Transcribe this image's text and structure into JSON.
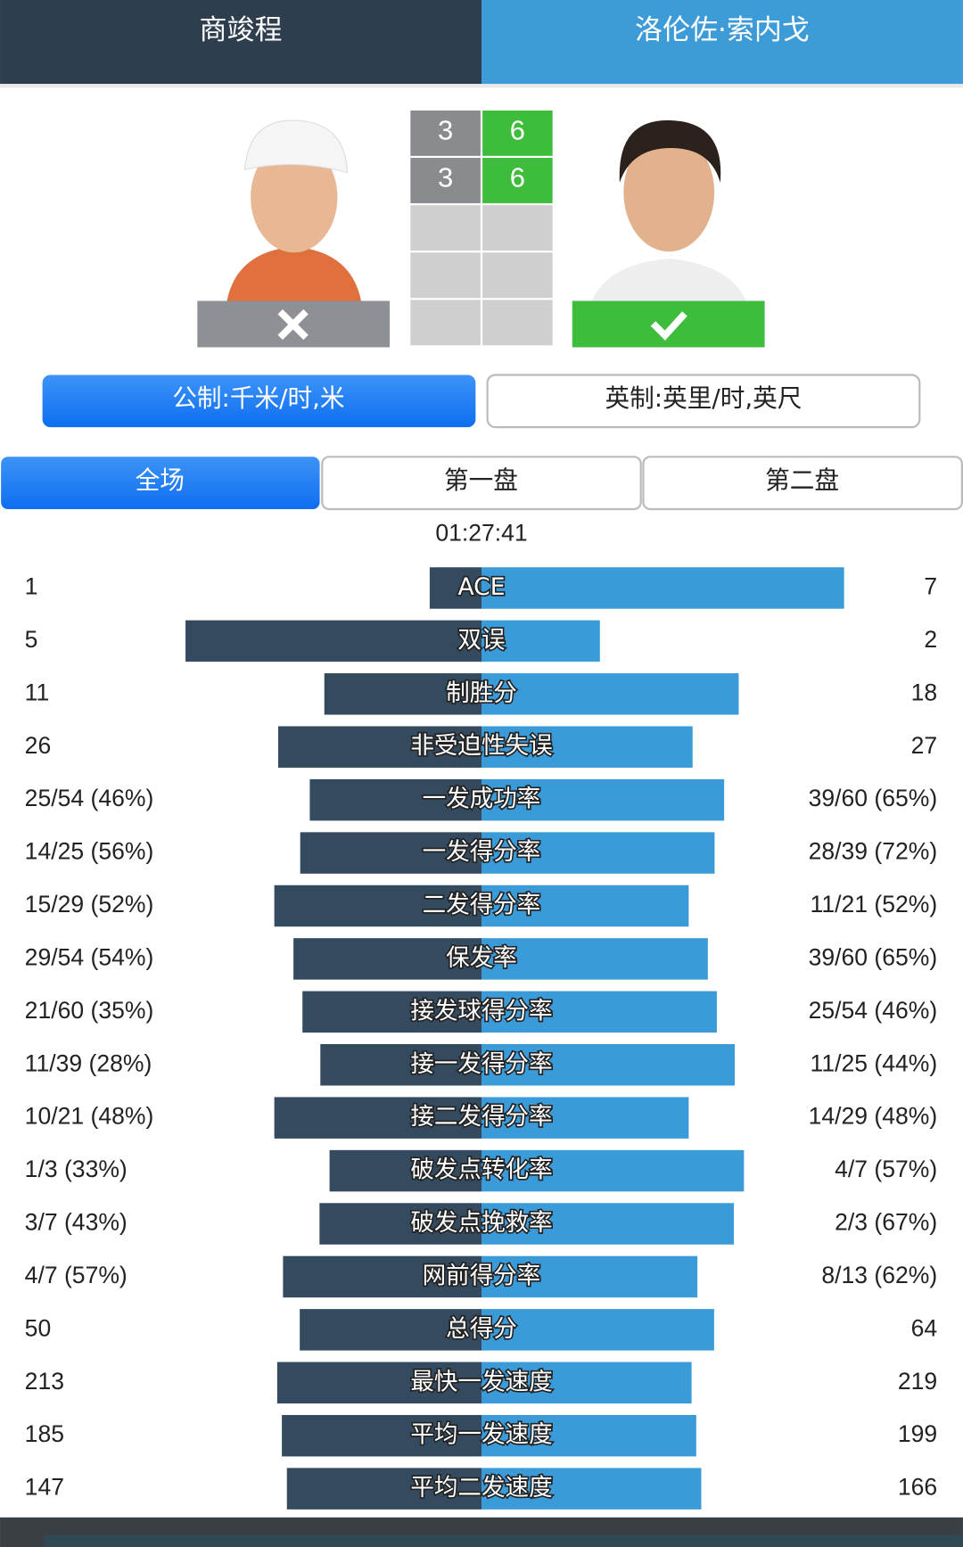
{
  "header": {
    "player1": "商竣程",
    "player2": "洛伦佐·索内戈"
  },
  "scores": {
    "player1": [
      3,
      3
    ],
    "player2": [
      6,
      6
    ]
  },
  "units": {
    "metric": "公制:千米/时,米",
    "imperial": "英制:英里/时,英尺"
  },
  "tabs": [
    "全场",
    "第一盘",
    "第二盘"
  ],
  "duration": "01:27:41",
  "stats": [
    {
      "label": "ACE",
      "left": 1,
      "right": 7
    },
    {
      "label": "双误",
      "left": 5,
      "right": 2
    },
    {
      "label": "制胜分",
      "left": 11,
      "right": 18
    },
    {
      "label": "非受迫性失误",
      "left": 26,
      "right": 27
    },
    {
      "label": "一发成功率",
      "left": {
        "value": 46,
        "label": "25/54 (46%)"
      },
      "right": {
        "value": 65,
        "label": "39/60 (65%)"
      }
    },
    {
      "label": "一发得分率",
      "left": {
        "value": 56,
        "label": "14/25 (56%)"
      },
      "right": {
        "value": 72,
        "label": "28/39 (72%)"
      }
    },
    {
      "label": "二发得分率",
      "left": {
        "value": 52,
        "label": "15/29 (52%)"
      },
      "right": {
        "value": 52,
        "label": "11/21 (52%)"
      }
    },
    {
      "label": "保发率",
      "left": {
        "value": 54,
        "label": "29/54 (54%)"
      },
      "right": {
        "value": 65,
        "label": "39/60 (65%)"
      }
    },
    {
      "label": "接发球得分率",
      "left": {
        "value": 35,
        "label": "21/60 (35%)"
      },
      "right": {
        "value": 46,
        "label": "25/54 (46%)"
      }
    },
    {
      "label": "接一发得分率",
      "left": {
        "value": 28,
        "label": "11/39 (28%)"
      },
      "right": {
        "value": 44,
        "label": "11/25 (44%)"
      }
    },
    {
      "label": "接二发得分率",
      "left": {
        "value": 48,
        "label": "10/21 (48%)"
      },
      "right": {
        "value": 48,
        "label": "14/29 (48%)"
      }
    },
    {
      "label": "破发点转化率",
      "left": {
        "value": 33,
        "label": "1/3 (33%)"
      },
      "right": {
        "value": 57,
        "label": "4/7 (57%)"
      }
    },
    {
      "label": "破发点挽救率",
      "left": {
        "value": 43,
        "label": "3/7 (43%)"
      },
      "right": {
        "value": 67,
        "label": "2/3 (67%)"
      }
    },
    {
      "label": "网前得分率",
      "left": {
        "value": 57,
        "label": "4/7 (57%)"
      },
      "right": {
        "value": 62,
        "label": "8/13 (62%)"
      }
    },
    {
      "label": "总得分",
      "left": 50,
      "right": 64
    },
    {
      "label": "最快一发速度",
      "left": 213,
      "right": 219
    },
    {
      "label": "平均一发速度",
      "left": 185,
      "right": 199
    },
    {
      "label": "平均二发速度",
      "left": 147,
      "right": 166
    }
  ]
}
